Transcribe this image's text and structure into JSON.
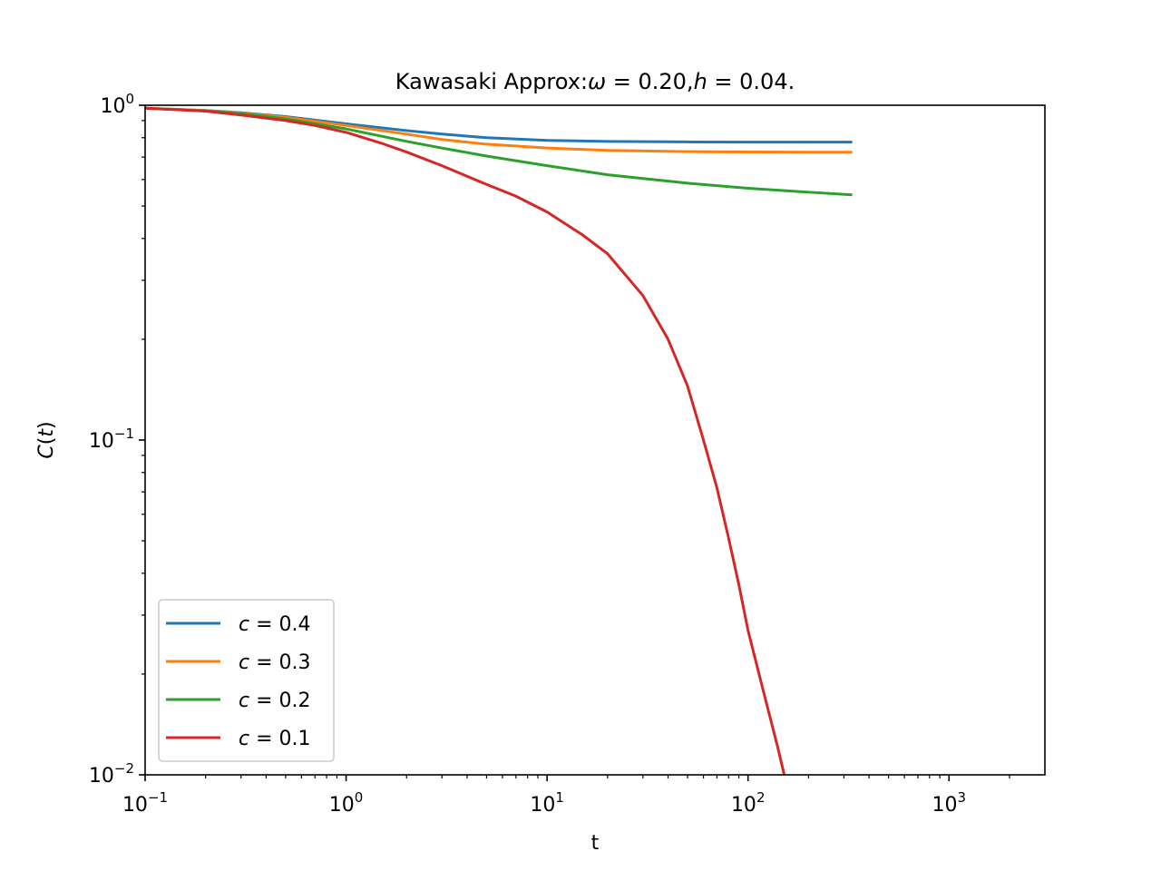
{
  "chart_data": {
    "type": "line",
    "title": {
      "prefix": "Kawasaki Approx:",
      "omega_symbol": "ω",
      "omega_value": " = 0.20,",
      "h_symbol": "h",
      "h_value": " = 0.04."
    },
    "xlabel": "t",
    "ylabel": {
      "func": "C",
      "open": "(",
      "var": "t",
      "close": ")"
    },
    "xscale": "log",
    "yscale": "log",
    "xlim": [
      0.1,
      3000
    ],
    "ylim": [
      0.01,
      1
    ],
    "x_ticks": [
      {
        "value": 0.1,
        "base": "10",
        "exp": "−1"
      },
      {
        "value": 1,
        "base": "10",
        "exp": "0"
      },
      {
        "value": 10,
        "base": "10",
        "exp": "1"
      },
      {
        "value": 100,
        "base": "10",
        "exp": "2"
      },
      {
        "value": 1000,
        "base": "10",
        "exp": "3"
      }
    ],
    "y_ticks": [
      {
        "value": 0.01,
        "base": "10",
        "exp": "−2"
      },
      {
        "value": 0.1,
        "base": "10",
        "exp": "−1"
      },
      {
        "value": 1,
        "base": "10",
        "exp": "0"
      }
    ],
    "grid": false,
    "legend_position": "lower-left",
    "series": [
      {
        "name": "c = 0.4",
        "name_var": "c",
        "name_val": " = 0.4",
        "color": "#1f77b4",
        "x": [
          0.1,
          0.2,
          0.3,
          0.5,
          1,
          2,
          3,
          5,
          10,
          20,
          50,
          100,
          200,
          330
        ],
        "y": [
          0.98,
          0.965,
          0.95,
          0.925,
          0.88,
          0.84,
          0.82,
          0.8,
          0.785,
          0.78,
          0.777,
          0.776,
          0.776,
          0.776
        ]
      },
      {
        "name": "c = 0.3",
        "name_var": "c",
        "name_val": " = 0.3",
        "color": "#ff7f0e",
        "x": [
          0.1,
          0.2,
          0.3,
          0.5,
          1,
          2,
          3,
          5,
          10,
          20,
          50,
          100,
          200,
          330
        ],
        "y": [
          0.98,
          0.964,
          0.948,
          0.92,
          0.87,
          0.82,
          0.79,
          0.765,
          0.745,
          0.733,
          0.727,
          0.725,
          0.724,
          0.724
        ]
      },
      {
        "name": "c = 0.2",
        "name_var": "c",
        "name_val": " = 0.2",
        "color": "#2ca02c",
        "x": [
          0.1,
          0.2,
          0.3,
          0.5,
          1,
          2,
          3,
          5,
          10,
          20,
          50,
          100,
          200,
          330
        ],
        "y": [
          0.98,
          0.962,
          0.945,
          0.91,
          0.85,
          0.78,
          0.745,
          0.705,
          0.66,
          0.62,
          0.585,
          0.565,
          0.55,
          0.54
        ]
      },
      {
        "name": "c = 0.1",
        "name_var": "c",
        "name_val": " = 0.1",
        "color": "#d62728",
        "x": [
          0.1,
          0.2,
          0.3,
          0.5,
          0.7,
          1,
          1.5,
          2,
          3,
          5,
          7,
          10,
          15,
          20,
          30,
          40,
          50,
          60,
          70,
          80,
          90,
          100,
          120,
          140,
          152
        ],
        "y": [
          0.98,
          0.96,
          0.935,
          0.9,
          0.87,
          0.83,
          0.77,
          0.725,
          0.66,
          0.58,
          0.535,
          0.48,
          0.41,
          0.36,
          0.27,
          0.2,
          0.145,
          0.1,
          0.072,
          0.051,
          0.037,
          0.027,
          0.0175,
          0.0122,
          0.0099
        ]
      }
    ]
  }
}
